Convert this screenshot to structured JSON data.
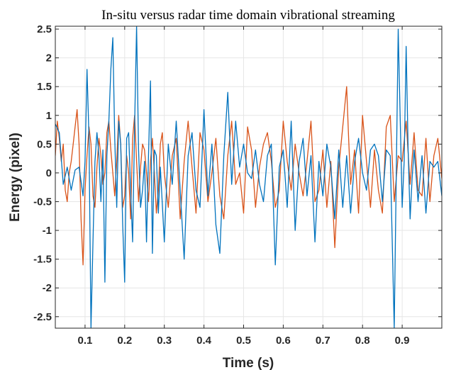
{
  "chart_data": {
    "type": "line",
    "title": "In-situ versus radar time domain vibrational streaming",
    "xlabel": "Time (s)",
    "ylabel": "Energy (pixel)",
    "xlim": [
      0.025,
      1.0
    ],
    "ylim": [
      -2.7,
      2.55
    ],
    "xticks": [
      0.1,
      0.2,
      0.3,
      0.4,
      0.5,
      0.6,
      0.7,
      0.8,
      0.9
    ],
    "xtick_labels": [
      "0.1",
      "0.2",
      "0.3",
      "0.4",
      "0.5",
      "0.6",
      "0.7",
      "0.8",
      "0.9"
    ],
    "yticks": [
      -2.5,
      -2,
      -1.5,
      -1,
      -0.5,
      0,
      0.5,
      1,
      1.5,
      2,
      2.5
    ],
    "ytick_labels": [
      "-2.5",
      "-2",
      "-1.5",
      "-1",
      "-0.5",
      "0",
      "0.5",
      "1",
      "1.5",
      "2",
      "2.5"
    ],
    "grid": true,
    "colors": {
      "series_blue": "#0072BD",
      "series_orange": "#D95319",
      "grid": "#e6e6e6",
      "axis": "#262626"
    },
    "series": [
      {
        "name": "blue",
        "color": "#0072BD",
        "x": [
          0.025,
          0.035,
          0.045,
          0.055,
          0.065,
          0.075,
          0.085,
          0.095,
          0.1,
          0.105,
          0.11,
          0.115,
          0.12,
          0.125,
          0.13,
          0.135,
          0.14,
          0.145,
          0.15,
          0.155,
          0.16,
          0.165,
          0.17,
          0.175,
          0.18,
          0.185,
          0.19,
          0.195,
          0.2,
          0.205,
          0.21,
          0.215,
          0.22,
          0.225,
          0.23,
          0.235,
          0.24,
          0.245,
          0.25,
          0.255,
          0.26,
          0.265,
          0.27,
          0.275,
          0.28,
          0.285,
          0.29,
          0.3,
          0.31,
          0.32,
          0.33,
          0.34,
          0.35,
          0.36,
          0.37,
          0.38,
          0.39,
          0.4,
          0.41,
          0.42,
          0.43,
          0.44,
          0.45,
          0.46,
          0.47,
          0.48,
          0.49,
          0.5,
          0.51,
          0.52,
          0.53,
          0.54,
          0.55,
          0.56,
          0.57,
          0.58,
          0.59,
          0.6,
          0.61,
          0.62,
          0.63,
          0.64,
          0.65,
          0.66,
          0.67,
          0.68,
          0.69,
          0.7,
          0.71,
          0.72,
          0.73,
          0.74,
          0.75,
          0.76,
          0.77,
          0.78,
          0.79,
          0.8,
          0.81,
          0.82,
          0.83,
          0.84,
          0.85,
          0.86,
          0.87,
          0.88,
          0.89,
          0.9,
          0.905,
          0.91,
          0.915,
          0.92,
          0.925,
          0.93,
          0.94,
          0.95,
          0.96,
          0.97,
          0.98,
          0.99,
          1.0
        ],
        "values": [
          0.85,
          0.7,
          -0.2,
          0.1,
          -0.3,
          0.05,
          0.1,
          -0.4,
          0.2,
          1.8,
          0.6,
          -2.7,
          -1.2,
          0.2,
          0.7,
          0.3,
          -0.5,
          0.4,
          -1.9,
          0.3,
          0.9,
          1.8,
          2.35,
          0.6,
          -0.6,
          0.9,
          0.5,
          -0.9,
          -1.9,
          0.6,
          0.7,
          -0.3,
          -1.2,
          0.8,
          2.55,
          0.4,
          -0.6,
          -0.3,
          0.2,
          -1.2,
          0.3,
          1.6,
          -1.4,
          0.4,
          0.3,
          -0.7,
          0.1,
          -1.2,
          0.5,
          -0.2,
          0.9,
          -0.3,
          -1.5,
          0.3,
          0.7,
          -0.3,
          -0.6,
          1.1,
          -0.4,
          0.5,
          -0.9,
          -1.4,
          0.3,
          1.4,
          -0.2,
          0.9,
          0.1,
          0.5,
          0.0,
          -0.1,
          0.4,
          -0.2,
          -0.5,
          0.3,
          0.5,
          -1.6,
          0.1,
          0.4,
          -0.6,
          0.9,
          -1.0,
          0.2,
          0.6,
          -0.4,
          0.3,
          -1.2,
          0.2,
          -0.4,
          0.5,
          0.1,
          -0.8,
          0.4,
          -0.6,
          0.3,
          -0.7,
          0.2,
          0.6,
          0.0,
          -0.3,
          0.4,
          0.5,
          0.3,
          -0.5,
          0.4,
          0.3,
          -2.7,
          2.5,
          -0.6,
          0.2,
          2.2,
          0.4,
          -0.8,
          -0.1,
          0.4,
          -0.5,
          0.3,
          -0.7,
          0.2,
          0.1,
          0.2,
          -0.4
        ]
      },
      {
        "name": "orange",
        "color": "#D95319",
        "x": [
          0.025,
          0.03,
          0.035,
          0.04,
          0.045,
          0.05,
          0.055,
          0.06,
          0.065,
          0.07,
          0.075,
          0.08,
          0.085,
          0.09,
          0.095,
          0.1,
          0.105,
          0.11,
          0.115,
          0.12,
          0.125,
          0.13,
          0.135,
          0.14,
          0.145,
          0.15,
          0.155,
          0.16,
          0.165,
          0.17,
          0.175,
          0.18,
          0.185,
          0.19,
          0.195,
          0.2,
          0.205,
          0.21,
          0.215,
          0.22,
          0.225,
          0.23,
          0.235,
          0.24,
          0.245,
          0.25,
          0.255,
          0.26,
          0.265,
          0.27,
          0.275,
          0.28,
          0.285,
          0.29,
          0.295,
          0.3,
          0.31,
          0.32,
          0.33,
          0.34,
          0.35,
          0.36,
          0.37,
          0.38,
          0.39,
          0.4,
          0.41,
          0.42,
          0.43,
          0.44,
          0.45,
          0.46,
          0.47,
          0.48,
          0.49,
          0.5,
          0.51,
          0.52,
          0.53,
          0.54,
          0.55,
          0.56,
          0.57,
          0.58,
          0.59,
          0.6,
          0.61,
          0.62,
          0.63,
          0.64,
          0.65,
          0.66,
          0.67,
          0.68,
          0.69,
          0.7,
          0.71,
          0.72,
          0.73,
          0.74,
          0.75,
          0.76,
          0.765,
          0.77,
          0.78,
          0.79,
          0.8,
          0.81,
          0.82,
          0.83,
          0.84,
          0.85,
          0.86,
          0.87,
          0.88,
          0.89,
          0.9,
          0.91,
          0.92,
          0.93,
          0.94,
          0.95,
          0.96,
          0.97,
          0.98,
          0.99,
          1.0
        ],
        "values": [
          0.3,
          0.9,
          0.6,
          0.2,
          0.5,
          -0.3,
          -0.5,
          0.0,
          0.2,
          0.5,
          0.8,
          1.1,
          0.5,
          -0.8,
          -1.6,
          -0.3,
          0.3,
          0.8,
          0.5,
          -0.4,
          -0.6,
          0.1,
          0.6,
          0.3,
          -0.2,
          0.0,
          0.7,
          0.9,
          0.4,
          0.0,
          -0.4,
          0.2,
          1.0,
          0.5,
          -0.6,
          -0.4,
          0.3,
          0.0,
          -0.8,
          0.6,
          1.0,
          0.2,
          -0.5,
          0.1,
          0.5,
          0.4,
          0.0,
          -0.5,
          0.2,
          0.6,
          0.0,
          -0.7,
          -0.3,
          0.5,
          0.7,
          0.0,
          -0.6,
          0.3,
          0.6,
          -0.8,
          0.2,
          0.9,
          0.1,
          -0.7,
          0.7,
          0.4,
          -0.5,
          0.0,
          0.6,
          -0.4,
          -0.8,
          0.3,
          0.9,
          -0.2,
          0.0,
          -0.7,
          0.8,
          0.4,
          -0.6,
          0.1,
          0.5,
          0.7,
          0.2,
          -0.6,
          -0.3,
          0.9,
          0.2,
          -0.3,
          0.5,
          0.0,
          -0.4,
          0.2,
          0.9,
          -0.5,
          -0.3,
          0.4,
          -0.6,
          0.2,
          -1.3,
          0.1,
          0.8,
          1.5,
          0.6,
          -0.2,
          0.4,
          -0.7,
          1.0,
          0.2,
          -0.6,
          0.4,
          -0.3,
          -0.7,
          0.8,
          1.0,
          -0.5,
          0.3,
          0.2,
          0.9,
          -0.2,
          0.7,
          -0.3,
          -0.4,
          0.6,
          -0.5,
          0.3,
          0.6,
          -0.1
        ]
      }
    ]
  }
}
